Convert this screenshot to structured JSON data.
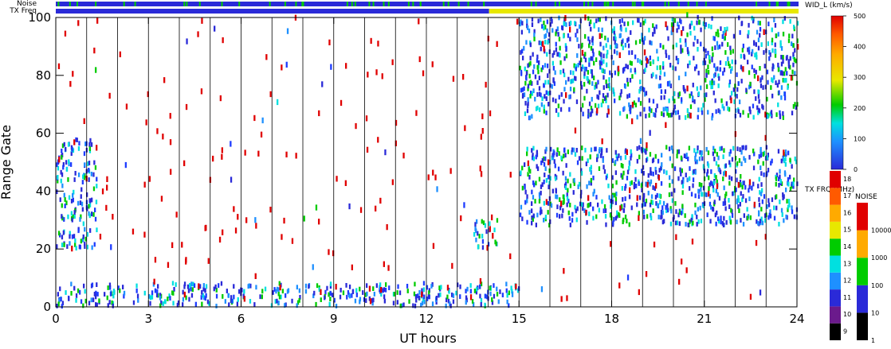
{
  "chart_data": {
    "type": "scatter",
    "xlabel": "UT hours",
    "ylabel": "Range Gate",
    "xlim": [
      0,
      24
    ],
    "ylim": [
      0,
      100
    ],
    "xticks": [
      "0",
      "3",
      "6",
      "9",
      "12",
      "15",
      "18",
      "21",
      "24"
    ],
    "yticks": [
      "0",
      "20",
      "40",
      "60",
      "80",
      "100"
    ],
    "strip_labels": [
      "Noise",
      "TX Freq"
    ],
    "main_colorbar": {
      "title": "WID_L (km/s)",
      "ticks": [
        "0",
        "100",
        "200",
        "300",
        "400",
        "500"
      ],
      "range": [
        0,
        500
      ]
    },
    "txfreq_colorbar": {
      "title": "TX FRQ (MHz)",
      "ticks": [
        "9",
        "10",
        "11",
        "12",
        "13",
        "14",
        "15",
        "16",
        "17",
        "18"
      ],
      "colors": [
        "#000000",
        "#6b1a8c",
        "#2a2ad8",
        "#1e90ff",
        "#00e0e0",
        "#00cc00",
        "#e8e800",
        "#ffaa00",
        "#ff5a00",
        "#e00000"
      ]
    },
    "noise_colorbar": {
      "title": "NOISE",
      "ticks": [
        "1",
        "10",
        "100",
        "1000",
        "10000"
      ],
      "colors": [
        "#000000",
        "#2a2ad8",
        "#00cc00",
        "#ffaa00",
        "#e00000"
      ]
    },
    "scatter_regions": [
      {
        "name": "Low-range band",
        "x": [
          0,
          15
        ],
        "y": [
          0,
          8
        ],
        "value_kms": 60
      },
      {
        "name": "Early echo patch",
        "x": [
          0,
          1.3
        ],
        "y": [
          20,
          58
        ],
        "value_kms": 60
      },
      {
        "name": "Afternoon band",
        "x": [
          15,
          24
        ],
        "y": [
          28,
          55
        ],
        "value_kms": 40
      },
      {
        "name": "High-range cloud",
        "x": [
          15,
          24
        ],
        "y": [
          65,
          100
        ],
        "value_kms": 80
      },
      {
        "name": "Isolated patch",
        "x": [
          13.5,
          14.3
        ],
        "y": [
          20,
          30
        ],
        "value_kms": 50
      }
    ],
    "noise_strip": {
      "dominant": "#2a2ad8",
      "accent": "#00cc00"
    },
    "txfreq_strip": {
      "segments": [
        {
          "x": [
            0,
            14
          ],
          "freq_mhz": 11
        },
        {
          "x": [
            14,
            24
          ],
          "freq_mhz": 15
        }
      ]
    }
  }
}
